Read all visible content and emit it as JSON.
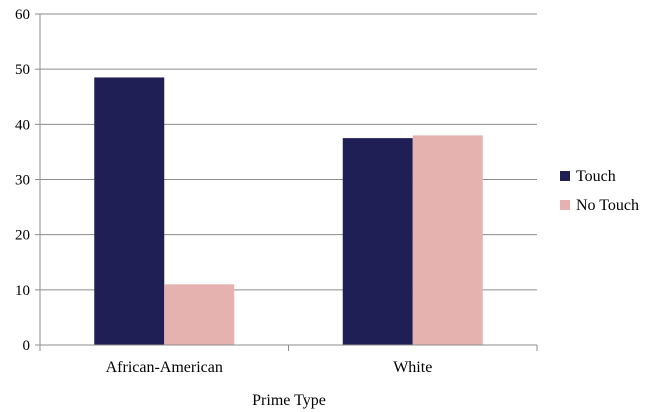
{
  "chart_data": {
    "type": "bar",
    "categories": [
      "African-American",
      "White"
    ],
    "series": [
      {
        "name": "Touch",
        "values": [
          48.5,
          37.5
        ],
        "color": "#1f1f55"
      },
      {
        "name": "No Touch",
        "values": [
          11,
          38
        ],
        "color": "#e6b2b0"
      }
    ],
    "xlabel": "Prime Type",
    "ylabel": "",
    "ylim": [
      0,
      60
    ],
    "yticks": [
      "0",
      "10",
      "20",
      "30",
      "40",
      "50",
      "60"
    ],
    "grid": true,
    "legend_position": "right"
  }
}
